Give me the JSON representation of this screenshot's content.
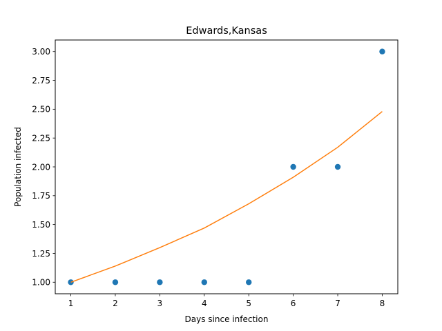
{
  "chart_data": {
    "type": "scatter",
    "title": "Edwards,Kansas",
    "xlabel": "Days since infection",
    "ylabel": "Population infected",
    "xlim": [
      0.65,
      8.35
    ],
    "ylim": [
      0.9,
      3.1
    ],
    "x_ticks": [
      1,
      2,
      3,
      4,
      5,
      6,
      7,
      8
    ],
    "x_tick_labels": [
      "1",
      "2",
      "3",
      "4",
      "5",
      "6",
      "7",
      "8"
    ],
    "y_ticks": [
      1.0,
      1.25,
      1.5,
      1.75,
      2.0,
      2.25,
      2.5,
      2.75,
      3.0
    ],
    "y_tick_labels": [
      "1.00",
      "1.25",
      "1.50",
      "1.75",
      "2.00",
      "2.25",
      "2.50",
      "2.75",
      "3.00"
    ],
    "grid": false,
    "series": [
      {
        "kind": "scatter",
        "color": "#1f77b4",
        "x": [
          1,
          2,
          3,
          4,
          5,
          6,
          7,
          8
        ],
        "y": [
          1,
          1,
          1,
          1,
          1,
          2,
          2,
          3
        ]
      },
      {
        "kind": "line",
        "color": "#ff7f0e",
        "x": [
          1,
          2,
          3,
          4,
          5,
          6,
          7,
          8
        ],
        "y": [
          1.0,
          1.14,
          1.3,
          1.47,
          1.68,
          1.91,
          2.17,
          2.48
        ]
      }
    ]
  }
}
